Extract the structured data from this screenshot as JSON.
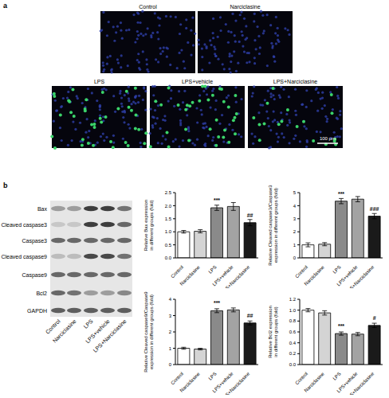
{
  "panel_labels": [
    "a",
    "b"
  ],
  "images": {
    "labels": [
      "Control",
      "Narciclasine",
      "LPS",
      "LPS+vehicle",
      "LPS+Narciclasine"
    ],
    "scale_bar": "100 μm"
  },
  "blot": {
    "rows": [
      "Bax",
      "Cleaved caspase3",
      "Caspase3",
      "Cleaved caspase9",
      "Caspase9",
      "Bcl2",
      "GAPDH"
    ],
    "lanes": [
      "Control",
      "Narciclasine",
      "LPS",
      "LPS+vehicle",
      "LPS+Narciclasine"
    ]
  },
  "chart_data": [
    {
      "type": "bar",
      "y_label": "Relative Bax expression in different groups (fold)",
      "categories": [
        "Control",
        "Narciclasine",
        "LPS",
        "LPS+vehicle",
        "LPS+Narciclasine"
      ],
      "values": [
        1.0,
        1.02,
        1.92,
        1.97,
        1.35
      ],
      "errors": [
        0.05,
        0.06,
        0.1,
        0.15,
        0.12
      ],
      "annotations": [
        null,
        null,
        "***",
        null,
        "##"
      ],
      "colors": [
        "#ffffff",
        "#d4d4d4",
        "#8a8a8a",
        "#a3a3a3",
        "#1a1a1a"
      ],
      "ylim": [
        0,
        2.5
      ],
      "yticks": [
        {
          "value": 0,
          "label": "0.0"
        },
        0.5,
        {
          "value": 1,
          "label": "1.0"
        },
        1.5,
        {
          "value": 2,
          "label": "2.0"
        },
        2.5
      ]
    },
    {
      "type": "bar",
      "y_label": "Relative Cleaved caspase3/Caspase3 expression in different groups (fold)",
      "categories": [
        "Control",
        "Narciclasine",
        "LPS",
        "LPS+vehicle",
        "LPS+Narciclasine"
      ],
      "values": [
        1.0,
        1.05,
        4.35,
        4.5,
        3.2
      ],
      "errors": [
        0.15,
        0.12,
        0.2,
        0.2,
        0.2
      ],
      "annotations": [
        null,
        null,
        "***",
        null,
        "###"
      ],
      "colors": [
        "#ffffff",
        "#d4d4d4",
        "#8a8a8a",
        "#a3a3a3",
        "#1a1a1a"
      ],
      "ylim": [
        0,
        5
      ],
      "yticks": [
        0,
        1,
        2,
        3,
        4,
        5
      ]
    },
    {
      "type": "bar",
      "y_label": "Relative Cleaved caspase9/Caspase9 expression in different groups (fold)",
      "categories": [
        "Control",
        "Narciclasine",
        "LPS",
        "LPS+vehicle",
        "LPS+Narciclasine"
      ],
      "values": [
        1.0,
        0.95,
        3.3,
        3.35,
        2.55
      ],
      "errors": [
        0.06,
        0.05,
        0.12,
        0.12,
        0.12
      ],
      "annotations": [
        null,
        null,
        "***",
        null,
        "##"
      ],
      "colors": [
        "#ffffff",
        "#d4d4d4",
        "#8a8a8a",
        "#a3a3a3",
        "#1a1a1a"
      ],
      "ylim": [
        0,
        4
      ],
      "yticks": [
        0,
        1,
        2,
        3,
        4
      ]
    },
    {
      "type": "bar",
      "y_label": "Relative Bcl2 expression in different groups (fold)",
      "categories": [
        "Control",
        "Narciclasine",
        "LPS",
        "LPS+vehicle",
        "LPS+Narciclasine"
      ],
      "values": [
        1.0,
        0.95,
        0.57,
        0.56,
        0.72
      ],
      "errors": [
        0.03,
        0.04,
        0.03,
        0.03,
        0.04
      ],
      "annotations": [
        null,
        null,
        "***",
        null,
        "#"
      ],
      "colors": [
        "#ffffff",
        "#d4d4d4",
        "#8a8a8a",
        "#a3a3a3",
        "#1a1a1a"
      ],
      "ylim": [
        0,
        1.2
      ],
      "yticks": [
        {
          "value": 0,
          "label": "0.0"
        },
        0.2,
        0.4,
        0.6,
        0.8,
        {
          "value": 1,
          "label": "1.0"
        },
        1.2
      ]
    }
  ]
}
